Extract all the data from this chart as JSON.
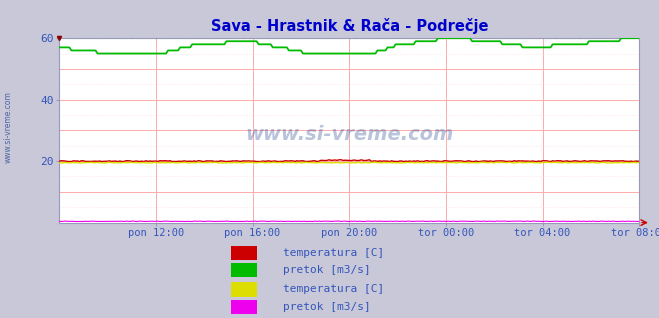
{
  "title": "Sava - Hrastnik & Rača - Podrečje",
  "title_color": "#0000cc",
  "background_color": "#c8c8d8",
  "plot_background": "#ffffff",
  "grid_color_major": "#ffaaaa",
  "grid_color_minor": "#ffdddd",
  "ylim": [
    0,
    60
  ],
  "yticks": [
    20,
    40,
    60
  ],
  "xlabel_color": "#3355bb",
  "ylabel_color": "#3355bb",
  "watermark": "www.si-vreme.com",
  "xtick_labels": [
    "pon 12:00",
    "pon 16:00",
    "pon 20:00",
    "tor 00:00",
    "tor 04:00",
    "tor 08:00"
  ],
  "legend_items": [
    {
      "label": "temperatura [C]",
      "color": "#cc0000"
    },
    {
      "label": "pretok [m3/s]",
      "color": "#00bb00"
    },
    {
      "label": "temperatura [C]",
      "color": "#dddd00"
    },
    {
      "label": "pretok [m3/s]",
      "color": "#ee00ee"
    }
  ],
  "sava_temp_base": 20.0,
  "sava_pretok_base": 57.0,
  "sava_pretok_max": 60.0,
  "raca_temp_base": 19.5,
  "raca_pretok_base": 0.4,
  "n_points": 289,
  "fig_width": 6.59,
  "fig_height": 3.18,
  "dpi": 100
}
